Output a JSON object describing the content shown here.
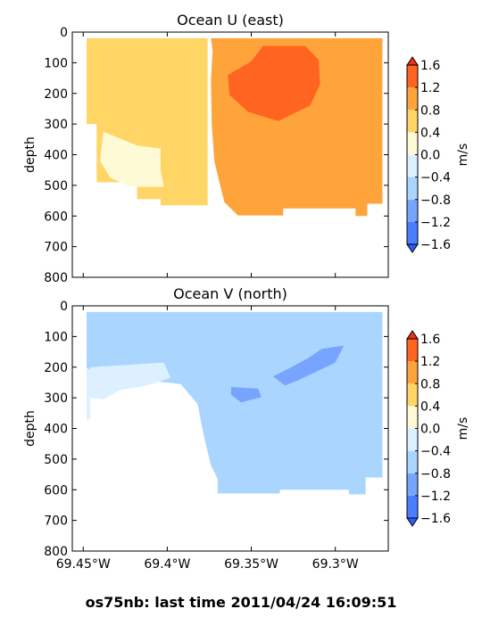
{
  "footer": "os75nb: last time 2011/04/24 16:09:51",
  "colors": {
    "levels": [
      "#2e5cff",
      "#4a7dff",
      "#76a4ff",
      "#a9d5ff",
      "#dcf0ff",
      "#fffad6",
      "#ffd566",
      "#ffa43b",
      "#ff6520",
      "#e8341a"
    ],
    "frame": "#000000",
    "background": "#ffffff"
  },
  "chart_data": [
    {
      "type": "heatmap",
      "title": "Ocean U (east)",
      "ylabel": "depth",
      "xlabel": "",
      "ylim": [
        800,
        0
      ],
      "yticks": [
        0,
        100,
        200,
        300,
        400,
        500,
        600,
        700,
        800
      ],
      "yticklabels": [
        "0",
        "100",
        "200",
        "300",
        "400",
        "500",
        "600",
        "700",
        "800"
      ],
      "xlim": [
        -69.4565,
        -69.2685
      ],
      "xticks": [
        -69.45,
        -69.4,
        -69.35,
        -69.3
      ],
      "xticklabels": [],
      "colorbar": {
        "label": "m/s",
        "levels": [
          -1.6,
          -1.2,
          -0.8,
          -0.4,
          0.0,
          0.4,
          0.8,
          1.2,
          1.6
        ],
        "ticklabels": [
          "1.6",
          "1.2",
          "0.8",
          "0.4",
          "0.0",
          "−0.4",
          "−0.8",
          "−1.2",
          "−1.6"
        ]
      },
      "regions": [
        {
          "band": "0.4 to 0.8",
          "value": 0.6,
          "polygon": [
            [
              -69.448,
              20
            ],
            [
              -69.376,
              20
            ],
            [
              -69.376,
              565
            ],
            [
              -69.404,
              565
            ],
            [
              -69.404,
              545
            ],
            [
              -69.418,
              545
            ],
            [
              -69.418,
              490
            ],
            [
              -69.442,
              490
            ],
            [
              -69.442,
              450
            ],
            [
              -69.442,
              300
            ],
            [
              -69.448,
              300
            ]
          ]
        },
        {
          "band": "0.8 to 1.2",
          "value": 1.0,
          "polygon": [
            [
              -69.374,
              20
            ],
            [
              -69.272,
              20
            ],
            [
              -69.272,
              560
            ],
            [
              -69.281,
              560
            ],
            [
              -69.281,
              600
            ],
            [
              -69.288,
              600
            ],
            [
              -69.288,
              575
            ],
            [
              -69.331,
              575
            ],
            [
              -69.331,
              598
            ],
            [
              -69.358,
              598
            ],
            [
              -69.366,
              555
            ],
            [
              -69.369,
              490
            ],
            [
              -69.372,
              420
            ],
            [
              -69.3735,
              300
            ],
            [
              -69.374,
              160
            ],
            [
              -69.373,
              60
            ]
          ]
        },
        {
          "band": "1.2 to 1.6",
          "value": 1.4,
          "polygon": [
            [
              -69.364,
              140
            ],
            [
              -69.35,
              95
            ],
            [
              -69.343,
              45
            ],
            [
              -69.318,
              45
            ],
            [
              -69.31,
              90
            ],
            [
              -69.309,
              170
            ],
            [
              -69.315,
              240
            ],
            [
              -69.334,
              290
            ],
            [
              -69.352,
              260
            ],
            [
              -69.363,
              205
            ]
          ]
        },
        {
          "band": "0.0 to 0.4",
          "value": 0.2,
          "polygon": [
            [
              -69.438,
              325
            ],
            [
              -69.418,
              370
            ],
            [
              -69.404,
              380
            ],
            [
              -69.404,
              450
            ],
            [
              -69.402,
              505
            ],
            [
              -69.422,
              505
            ],
            [
              -69.434,
              475
            ],
            [
              -69.44,
              420
            ]
          ]
        }
      ]
    },
    {
      "type": "heatmap",
      "title": "Ocean V (north)",
      "ylabel": "depth",
      "xlabel": "",
      "ylim": [
        800,
        0
      ],
      "yticks": [
        0,
        100,
        200,
        300,
        400,
        500,
        600,
        700,
        800
      ],
      "yticklabels": [
        "0",
        "100",
        "200",
        "300",
        "400",
        "500",
        "600",
        "700",
        "800"
      ],
      "xlim": [
        -69.4565,
        -69.2685
      ],
      "xticks": [
        -69.45,
        -69.4,
        -69.35,
        -69.3
      ],
      "xticklabels": [
        "69.45°W",
        "69.4°W",
        "69.35°W",
        "69.3°W"
      ],
      "colorbar": {
        "label": "m/s",
        "levels": [
          -1.6,
          -1.2,
          -0.8,
          -0.4,
          0.0,
          0.4,
          0.8,
          1.2,
          1.6
        ],
        "ticklabels": [
          "1.6",
          "1.2",
          "0.8",
          "0.4",
          "0.0",
          "−0.4",
          "−0.8",
          "−1.2",
          "−1.6"
        ]
      },
      "regions": [
        {
          "band": "-0.4 to 0.0",
          "value": -0.2,
          "polygon": [
            [
              -69.448,
              20
            ],
            [
              -69.446,
              20
            ],
            [
              -69.446,
              370
            ],
            [
              -69.448,
              370
            ]
          ]
        },
        {
          "band": "-0.8 to -0.4",
          "value": -0.6,
          "polygon": [
            [
              -69.448,
              20
            ],
            [
              -69.272,
              20
            ],
            [
              -69.272,
              560
            ],
            [
              -69.282,
              560
            ],
            [
              -69.282,
              615
            ],
            [
              -69.292,
              615
            ],
            [
              -69.292,
              600
            ],
            [
              -69.333,
              600
            ],
            [
              -69.333,
              612
            ],
            [
              -69.37,
              612
            ],
            [
              -69.37,
              565
            ],
            [
              -69.374,
              520
            ],
            [
              -69.378,
              430
            ],
            [
              -69.382,
              320
            ],
            [
              -69.392,
              255
            ],
            [
              -69.417,
              240
            ],
            [
              -69.44,
              235
            ],
            [
              -69.448,
              200
            ]
          ]
        },
        {
          "band": "-1.2 to -0.8",
          "value": -1.0,
          "polygon": [
            [
              -69.326,
              200
            ],
            [
              -69.316,
              170
            ],
            [
              -69.308,
              140
            ],
            [
              -69.295,
              130
            ],
            [
              -69.3,
              185
            ],
            [
              -69.323,
              245
            ],
            [
              -69.33,
              260
            ],
            [
              -69.337,
              230
            ]
          ]
        },
        {
          "band": "-1.2 to -0.8",
          "value": -1.0,
          "polygon": [
            [
              -69.362,
              265
            ],
            [
              -69.346,
              270
            ],
            [
              -69.344,
              298
            ],
            [
              -69.356,
              315
            ],
            [
              -69.362,
              290
            ]
          ]
        },
        {
          "band": "-0.4 to 0.0",
          "value": -0.2,
          "polygon": [
            [
              -69.446,
              200
            ],
            [
              -69.402,
              185
            ],
            [
              -69.398,
              235
            ],
            [
              -69.412,
              260
            ],
            [
              -69.428,
              275
            ],
            [
              -69.438,
              305
            ],
            [
              -69.446,
              300
            ]
          ]
        }
      ]
    }
  ]
}
